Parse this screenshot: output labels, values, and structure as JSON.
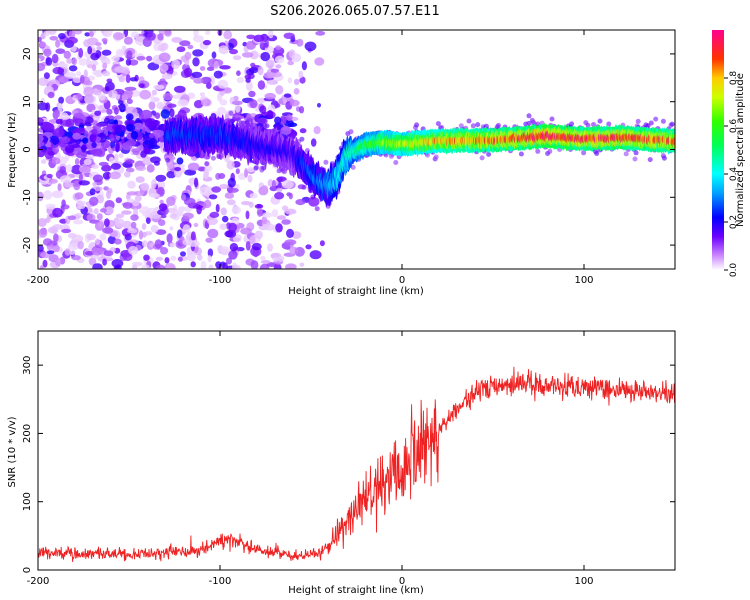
{
  "title": "S206.2026.065.07.57.E11",
  "chart_data": [
    {
      "type": "heatmap",
      "xlabel": "Height of straight line (km)",
      "ylabel": "Frequency (Hz)",
      "xlim": [
        -200,
        150
      ],
      "ylim": [
        -25,
        25
      ],
      "xticks": [
        -200,
        -100,
        0,
        100
      ],
      "yticks": [
        -20,
        -10,
        0,
        10,
        20
      ],
      "colorbar": {
        "label": "Normalized spectral amplitude",
        "range": [
          0,
          1
        ],
        "ticks": [
          "0.0",
          "0.2",
          "0.4",
          "0.6",
          "0.8"
        ]
      },
      "ridge": {
        "x": [
          -100,
          -80,
          -60,
          -55,
          -50,
          -45,
          -40,
          -35,
          -30,
          -25,
          -20,
          -10,
          0,
          20,
          50,
          80,
          100,
          120,
          150
        ],
        "freq": [
          3,
          1,
          -1,
          -3,
          -5,
          -7,
          -8,
          -5,
          -1,
          0,
          1,
          1.5,
          1.2,
          1.8,
          2,
          2.8,
          2.2,
          2.5,
          1.8
        ],
        "amplitude": [
          0.25,
          0.2,
          0.18,
          0.25,
          0.28,
          0.3,
          0.35,
          0.4,
          0.45,
          0.5,
          0.55,
          0.65,
          0.7,
          0.8,
          0.85,
          0.95,
          0.9,
          0.9,
          0.85
        ]
      }
    },
    {
      "type": "line",
      "xlabel": "Height of straight line (km)",
      "ylabel": "SNR (10 * v/v)",
      "xlim": [
        -200,
        150
      ],
      "ylim": [
        0,
        350
      ],
      "xticks": [
        -200,
        -100,
        0,
        100
      ],
      "yticks": [
        0,
        100,
        200,
        300
      ],
      "color": "#ee2222",
      "trend": {
        "x": [
          -200,
          -150,
          -110,
          -95,
          -80,
          -60,
          -45,
          -38,
          -30,
          -20,
          -10,
          0,
          10,
          20,
          30,
          40,
          50,
          70,
          90,
          110,
          130,
          150
        ],
        "y": [
          25,
          22,
          30,
          45,
          30,
          20,
          25,
          40,
          70,
          105,
          130,
          150,
          175,
          205,
          235,
          260,
          270,
          272,
          270,
          265,
          262,
          260
        ]
      }
    }
  ]
}
